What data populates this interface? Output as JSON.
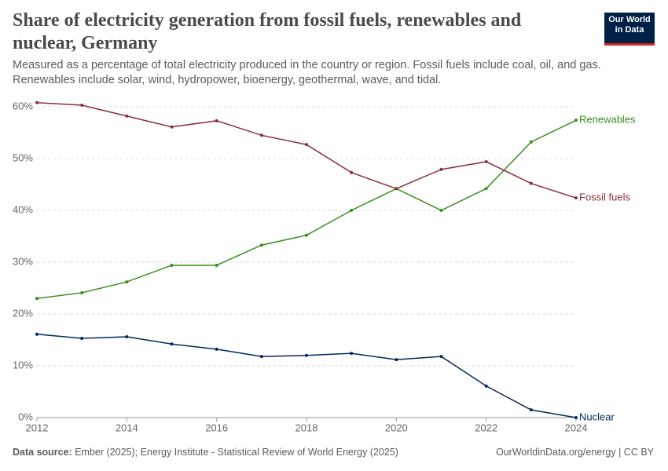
{
  "chart_data": {
    "type": "line",
    "title": "Share of electricity generation from fossil fuels, renewables and nuclear, Germany",
    "subtitle": "Measured as a percentage of total electricity produced in the country or region. Fossil fuels include coal, oil, and gas. Renewables include solar, wind, hydropower, bioenergy, geothermal, wave, and tidal.",
    "logo": [
      "Our World",
      "in Data"
    ],
    "source_label": "Data source:",
    "source": "Ember (2025); Energy Institute - Statistical Review of World Energy (2025)",
    "footer": "OurWorldinData.org/energy | CC BY",
    "x": [
      2012,
      2013,
      2014,
      2015,
      2016,
      2017,
      2018,
      2019,
      2020,
      2021,
      2022,
      2023,
      2024
    ],
    "xlim": [
      2012,
      2024
    ],
    "xticks": [
      2012,
      2014,
      2016,
      2018,
      2020,
      2022,
      2024
    ],
    "ylim": [
      0,
      60
    ],
    "yticks": [
      {
        "value": 0,
        "label": "0%"
      },
      {
        "value": 10,
        "label": "10%"
      },
      {
        "value": 20,
        "label": "20%"
      },
      {
        "value": 30,
        "label": "30%"
      },
      {
        "value": 40,
        "label": "40%"
      },
      {
        "value": 50,
        "label": "50%"
      },
      {
        "value": 60,
        "label": "60%"
      }
    ],
    "grid": true,
    "series": [
      {
        "name": "Renewables",
        "color": "#3a8e1f",
        "values": [
          23.0,
          24.1,
          26.2,
          29.4,
          29.4,
          33.3,
          35.2,
          40.0,
          44.2,
          40.0,
          44.2,
          53.2,
          57.4
        ]
      },
      {
        "name": "Fossil fuels",
        "color": "#883039",
        "values": [
          60.8,
          60.3,
          58.2,
          56.1,
          57.3,
          54.5,
          52.7,
          47.3,
          44.2,
          47.9,
          49.4,
          45.2,
          42.4
        ]
      },
      {
        "name": "Nuclear",
        "color": "#00295b",
        "values": [
          16.1,
          15.3,
          15.6,
          14.2,
          13.2,
          11.8,
          12.0,
          12.4,
          11.2,
          11.8,
          6.1,
          1.5,
          0
        ]
      }
    ]
  }
}
